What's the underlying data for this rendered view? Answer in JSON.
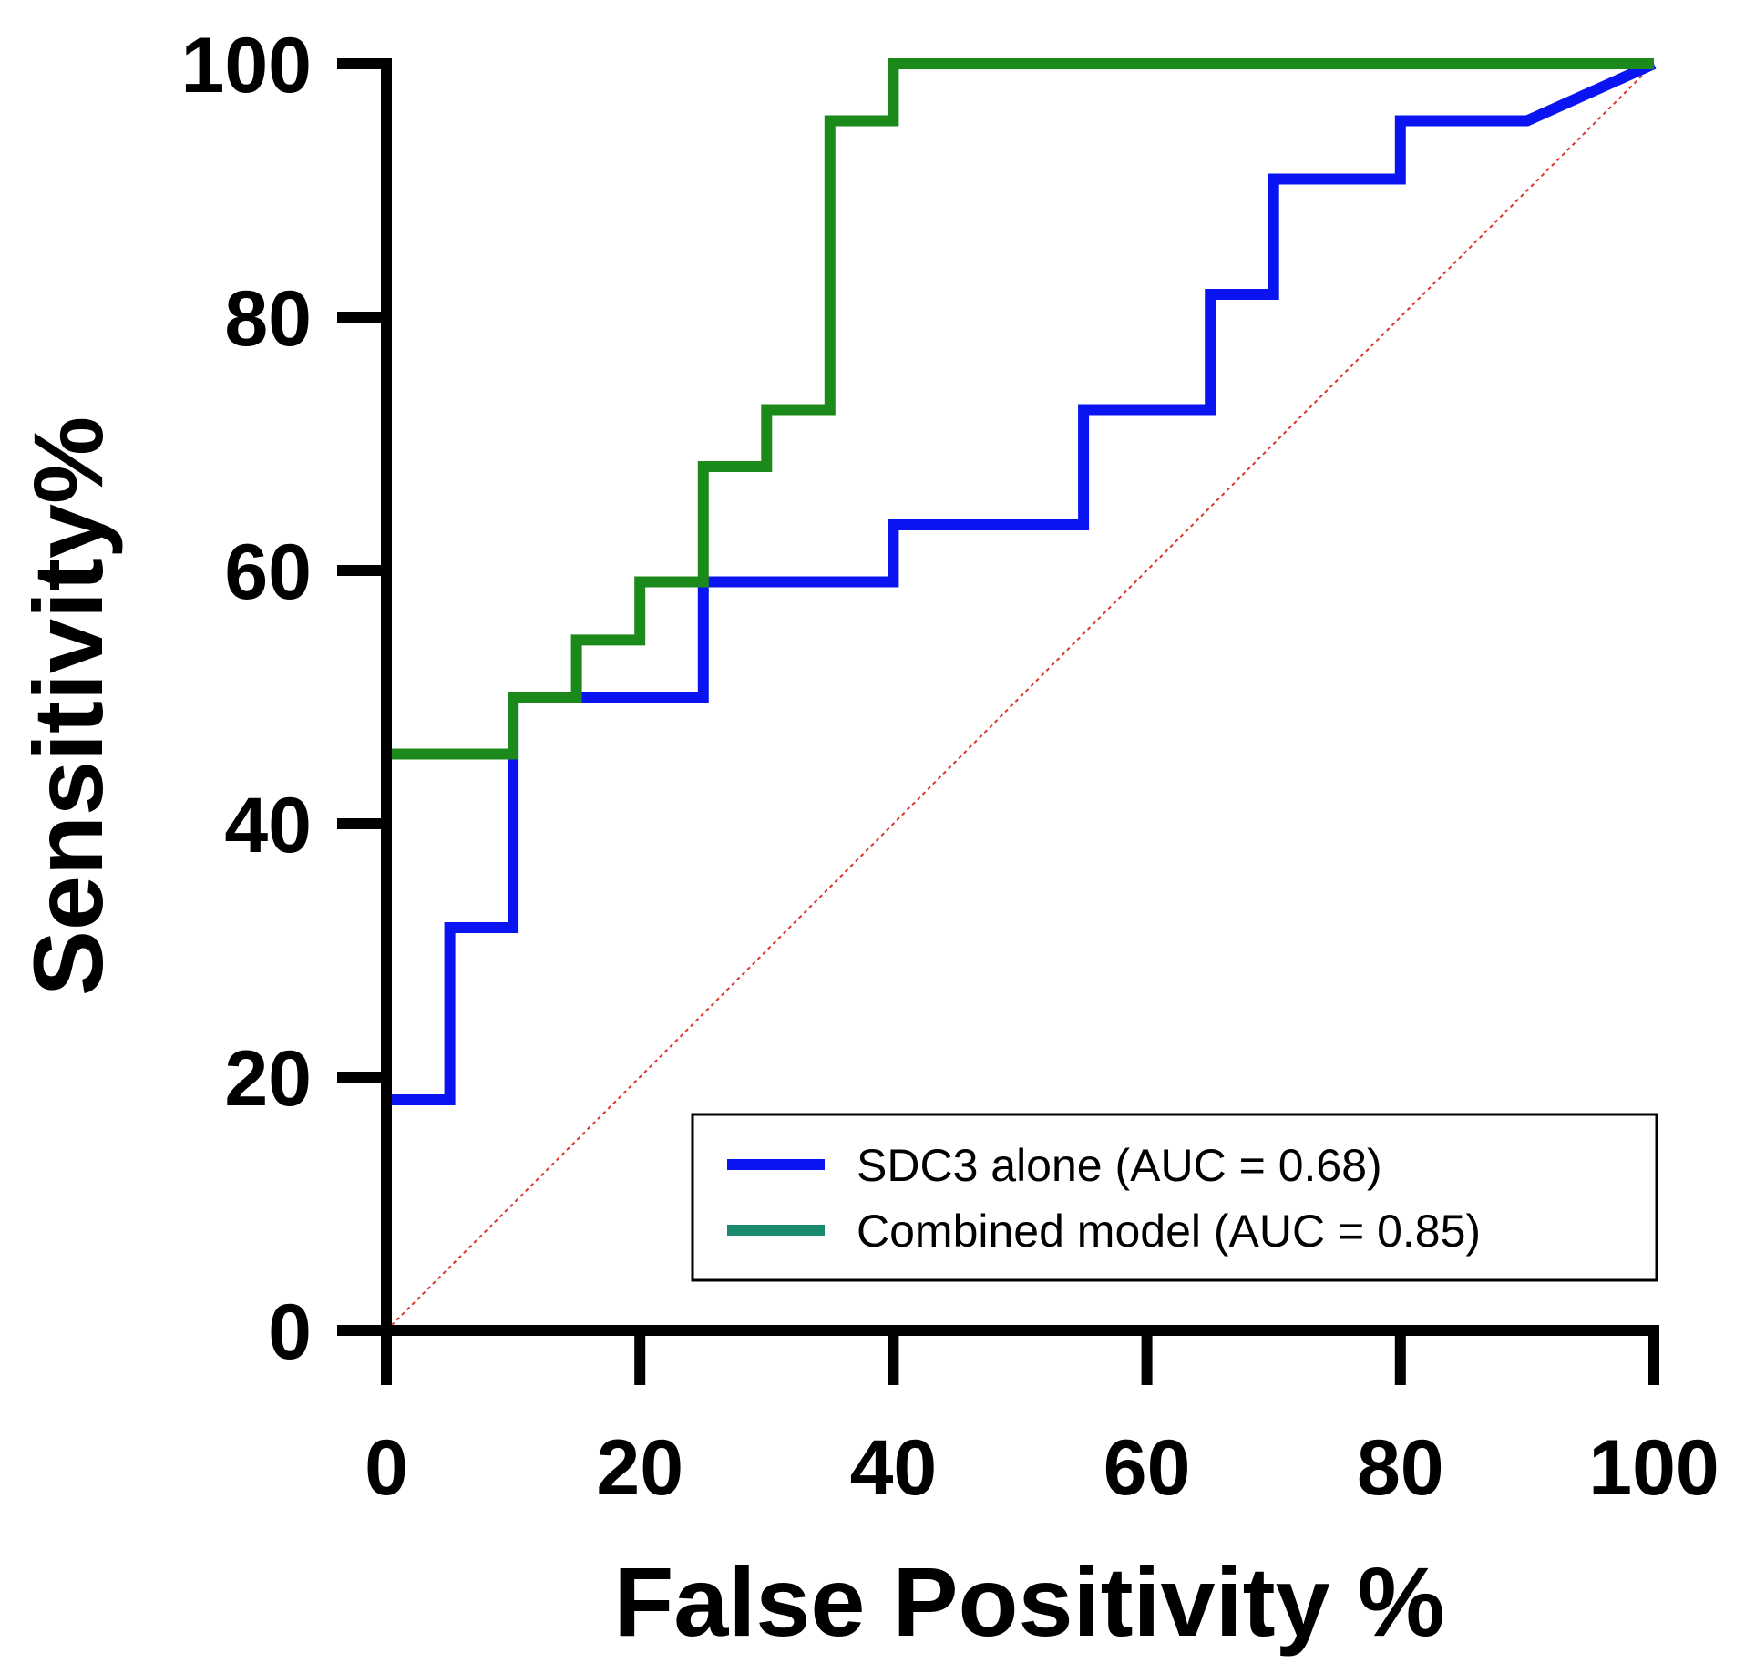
{
  "chart_data": {
    "type": "line",
    "title": "",
    "xlabel": "False Positivity %",
    "ylabel": "Sensitivity%",
    "xlim": [
      0,
      100
    ],
    "ylim": [
      0,
      100
    ],
    "xticks": [
      0,
      20,
      40,
      60,
      80,
      100
    ],
    "yticks": [
      0,
      20,
      40,
      60,
      80,
      100
    ],
    "grid": false,
    "legend_position": "bottom-right",
    "series": [
      {
        "name": "SDC3 alone (AUC = 0.68)",
        "color": "#0a14f0",
        "x": [
          0,
          0,
          5,
          5,
          10,
          10,
          15,
          25,
          25,
          40,
          40,
          55,
          55,
          65,
          65,
          70,
          70,
          80,
          80,
          90,
          100
        ],
        "y": [
          0,
          18.2,
          18.2,
          31.8,
          31.8,
          50,
          50,
          50,
          59.1,
          59.1,
          63.6,
          63.6,
          72.7,
          72.7,
          81.8,
          81.8,
          90.9,
          90.9,
          95.5,
          95.5,
          100
        ]
      },
      {
        "name": "Combined model (AUC = 0.85)",
        "color": "#1b8a1b",
        "legend_color": "#1a8a6e",
        "x": [
          0,
          0,
          10,
          10,
          15,
          15,
          20,
          20,
          25,
          25,
          30,
          30,
          35,
          35,
          40,
          40,
          100
        ],
        "y": [
          0,
          45.5,
          45.5,
          50,
          50,
          54.5,
          54.5,
          59.1,
          59.1,
          68.2,
          68.2,
          72.7,
          72.7,
          95.5,
          95.5,
          100,
          100
        ]
      },
      {
        "name": "",
        "role": "reference",
        "style": "dotted",
        "color": "#d9362b",
        "x": [
          0,
          100
        ],
        "y": [
          0,
          100
        ]
      }
    ]
  }
}
